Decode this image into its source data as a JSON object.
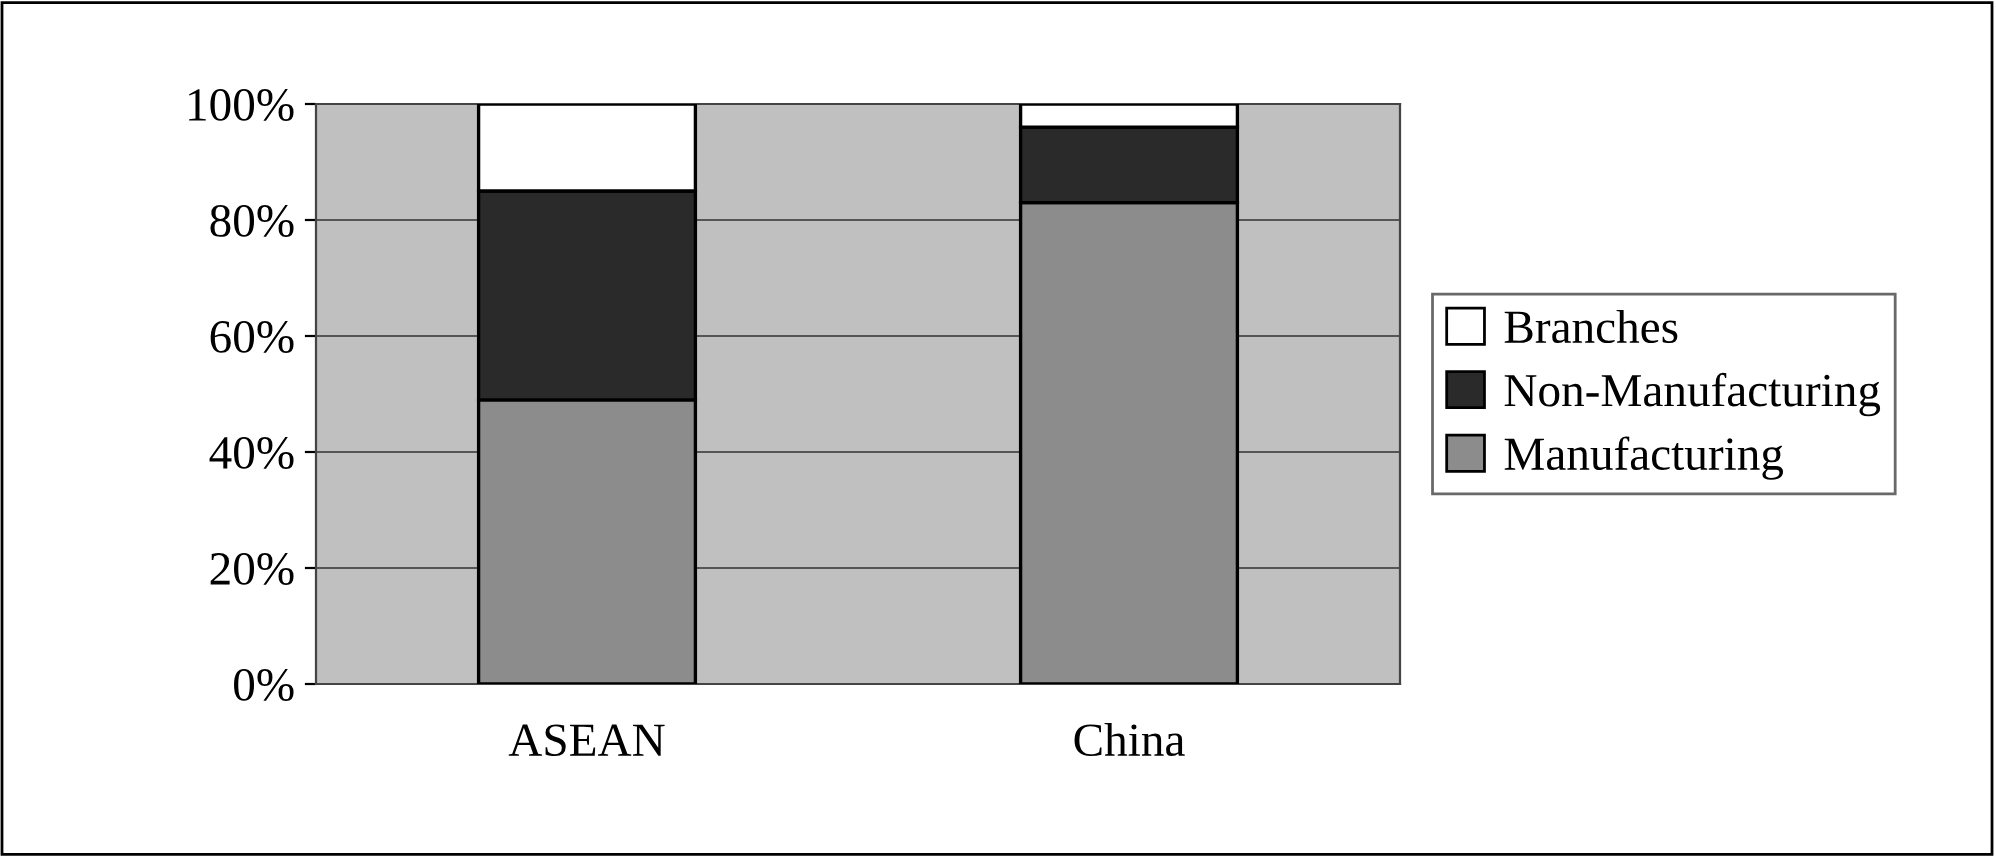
{
  "chart_data": {
    "type": "bar",
    "stacked": true,
    "categories": [
      "ASEAN",
      "China"
    ],
    "series": [
      {
        "name": "Manufacturing",
        "color": "#8c8c8c",
        "values": [
          49,
          83
        ]
      },
      {
        "name": "Non-Manufacturing",
        "color": "#2a2a2a",
        "values": [
          36,
          13
        ]
      },
      {
        "name": "Branches",
        "color": "#ffffff",
        "values": [
          15,
          4
        ]
      }
    ],
    "ylim": [
      0,
      100
    ],
    "yticks": [
      {
        "value": 0,
        "label": "0%"
      },
      {
        "value": 20,
        "label": "20%"
      },
      {
        "value": 40,
        "label": "40%"
      },
      {
        "value": 60,
        "label": "60%"
      },
      {
        "value": 80,
        "label": "80%"
      },
      {
        "value": 100,
        "label": "100%"
      }
    ],
    "grid": "y",
    "legend": "right"
  }
}
